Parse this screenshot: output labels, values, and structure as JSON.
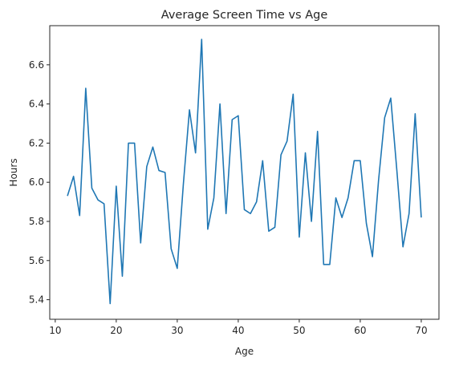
{
  "chart_data": {
    "type": "line",
    "title": "Average Screen Time vs Age",
    "xlabel": "Age",
    "ylabel": "Hours",
    "xlim": [
      9.1,
      72.9
    ],
    "ylim": [
      5.3,
      6.8
    ],
    "xticks": [
      10,
      20,
      30,
      40,
      50,
      60,
      70
    ],
    "yticks": [
      5.4,
      5.6,
      5.8,
      6.0,
      6.2,
      6.4,
      6.6
    ],
    "ytick_labels": [
      "5.4",
      "5.6",
      "5.8",
      "6.0",
      "6.2",
      "6.4",
      "6.6"
    ],
    "grid": false,
    "legend": "none",
    "series": [
      {
        "color": "#1f77b4",
        "x": [
          12,
          13,
          14,
          15,
          16,
          17,
          18,
          19,
          20,
          21,
          22,
          23,
          24,
          25,
          26,
          27,
          28,
          29,
          30,
          31,
          32,
          33,
          34,
          35,
          36,
          37,
          38,
          39,
          40,
          41,
          42,
          43,
          44,
          45,
          46,
          47,
          48,
          49,
          50,
          51,
          52,
          53,
          54,
          55,
          56,
          57,
          58,
          59,
          60,
          61,
          62,
          63,
          64,
          65,
          66,
          67,
          68,
          69,
          70
        ],
        "values": [
          5.93,
          6.03,
          5.83,
          6.48,
          5.97,
          5.91,
          5.89,
          5.38,
          5.98,
          5.52,
          6.2,
          6.2,
          5.69,
          6.08,
          6.18,
          6.06,
          6.05,
          5.66,
          5.56,
          5.99,
          6.37,
          6.15,
          6.73,
          5.76,
          5.92,
          6.4,
          5.84,
          6.32,
          6.34,
          5.86,
          5.84,
          5.9,
          6.11,
          5.75,
          5.77,
          6.14,
          6.21,
          6.45,
          5.72,
          6.15,
          5.8,
          6.26,
          5.58,
          5.58,
          5.92,
          5.82,
          5.92,
          6.11,
          6.11,
          5.79,
          5.62,
          6.01,
          6.33,
          6.43,
          6.06,
          5.67,
          5.84,
          6.35,
          5.82
        ]
      }
    ]
  }
}
